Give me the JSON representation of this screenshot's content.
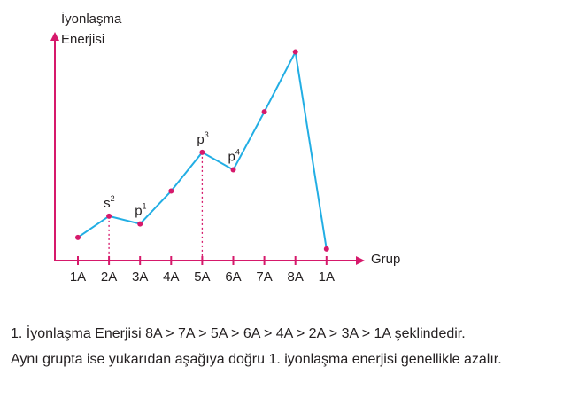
{
  "chart_data": {
    "type": "line",
    "ylabel_line1": "İyonlaşma",
    "ylabel_line2": "Enerjisi",
    "xlabel": "Grup",
    "categories": [
      "1A",
      "2A",
      "3A",
      "4A",
      "5A",
      "6A",
      "7A",
      "8A",
      "1A"
    ],
    "values": [
      1.2,
      2.3,
      1.9,
      3.6,
      5.6,
      4.7,
      7.7,
      10.8,
      0.6
    ],
    "ylim": [
      0,
      12
    ],
    "grid": false,
    "annotations": [
      {
        "index": 1,
        "base": "s",
        "sup": "2",
        "dashed_drop": true
      },
      {
        "index": 2,
        "base": "p",
        "sup": "1",
        "dashed_drop": false
      },
      {
        "index": 4,
        "base": "p",
        "sup": "3",
        "dashed_drop": true
      },
      {
        "index": 5,
        "base": "p",
        "sup": "4",
        "dashed_drop": false
      }
    ],
    "colors": {
      "axis": "#d6196b",
      "line": "#22aee4",
      "point": "#d6196b",
      "dashed": "#d6196b"
    }
  },
  "caption": {
    "line1": "1. İyonlaşma Enerjisi  8A > 7A > 5A > 6A > 4A > 2A > 3A > 1A şeklindedir.",
    "line2": "Aynı grupta ise yukarıdan aşağıya doğru 1. iyonlaşma enerjisi genellikle azalır."
  }
}
